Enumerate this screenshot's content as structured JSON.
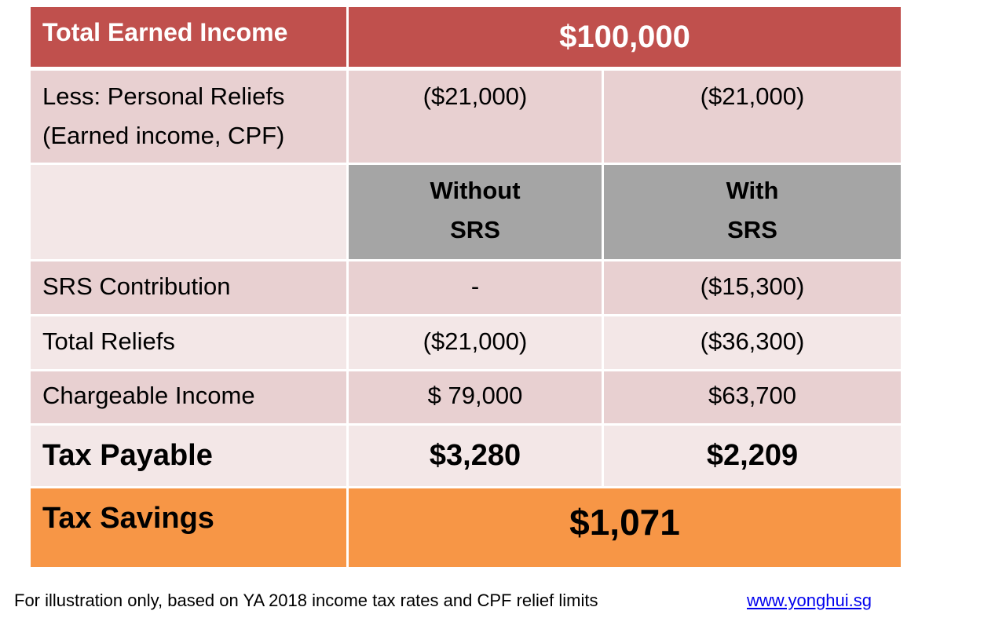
{
  "header": {
    "label": "Total Earned Income",
    "value": "$100,000"
  },
  "personal_reliefs": {
    "label": "Less: Personal Reliefs (Earned income, CPF)",
    "without": "($21,000)",
    "with": "($21,000)"
  },
  "columns": {
    "without": "Without SRS",
    "with": "With SRS"
  },
  "rows": [
    {
      "label": "SRS Contribution",
      "without": "-",
      "with": "($15,300)"
    },
    {
      "label": "Total Reliefs",
      "without": "($21,000)",
      "with": "($36,300)"
    },
    {
      "label": "Chargeable Income",
      "without": "$ 79,000",
      "with": "$63,700"
    },
    {
      "label": "Tax Payable",
      "without": "$3,280",
      "with": "$2,209"
    }
  ],
  "savings": {
    "label": "Tax Savings",
    "value": "$1,071"
  },
  "footer": {
    "note": "For illustration only, based on YA 2018 income tax rates and CPF relief limits",
    "link": "www.yonghui.sg"
  },
  "colors": {
    "header": "#C0504D",
    "savings": "#F79646",
    "column_header": "#A5A5A5"
  }
}
